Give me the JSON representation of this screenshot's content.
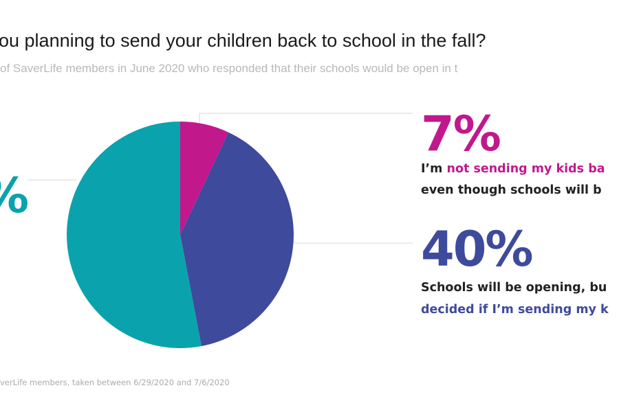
{
  "header": {
    "title": "ou planning to send your children back to school in the fall?",
    "subtitle": "of SaverLife members in June 2020 who responded that their schools would be open in t"
  },
  "footnote": "verLife members, taken between 6/29/2020 and 7/6/2020",
  "colors": {
    "teal": "#0aa3ad",
    "magenta": "#c1188c",
    "purple": "#3e4a9b"
  },
  "chart_data": {
    "type": "pie",
    "title": "Are you planning to send your children back to school in the fall?",
    "slices": [
      {
        "label": "not sending",
        "value": 7,
        "color": "#c1188c"
      },
      {
        "label": "undecided",
        "value": 40,
        "color": "#3e4a9b"
      },
      {
        "label": "sending",
        "value": 53,
        "color": "#0aa3ad"
      }
    ],
    "annotations": {
      "left_value": "%",
      "a": {
        "value": "7%",
        "line1_pre": "I’m ",
        "line1_hl": "not sending my kids ba",
        "line2": "even though schools will b"
      },
      "b": {
        "value": "40%",
        "line1": "Schools will be opening, bu",
        "line2": "decided if I’m sending my k"
      }
    }
  }
}
